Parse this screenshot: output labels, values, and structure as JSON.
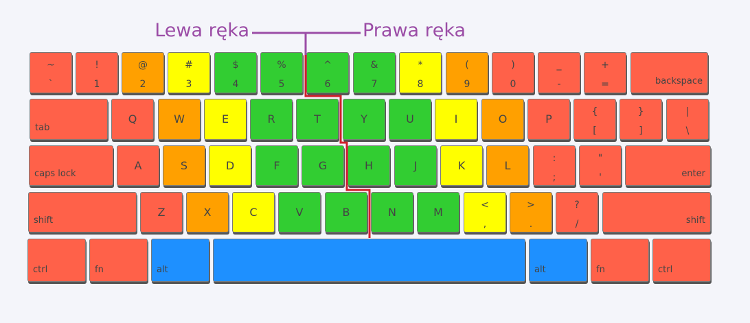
{
  "labels": {
    "left_hand": "Lewa ręka",
    "right_hand": "Prawa ręka"
  },
  "colors": {
    "red": "#ff6149",
    "orange": "#ffa000",
    "yellow": "#ffff00",
    "green": "#32cd32",
    "blue": "#1e90ff",
    "label_purple": "#9b4da6",
    "divider_red": "#d01f2b"
  },
  "rows": [
    [
      {
        "id": "tilde",
        "top": "~",
        "bottom": "`",
        "color": "red"
      },
      {
        "id": "1",
        "top": "!",
        "bottom": "1",
        "color": "red"
      },
      {
        "id": "2",
        "top": "@",
        "bottom": "2",
        "color": "orange"
      },
      {
        "id": "3",
        "top": "#",
        "bottom": "3",
        "color": "yellow"
      },
      {
        "id": "4",
        "top": "$",
        "bottom": "4",
        "color": "green"
      },
      {
        "id": "5",
        "top": "%",
        "bottom": "5",
        "color": "green"
      },
      {
        "id": "6",
        "top": "^",
        "bottom": "6",
        "color": "green"
      },
      {
        "id": "7",
        "top": "&",
        "bottom": "7",
        "color": "green"
      },
      {
        "id": "8",
        "top": "*",
        "bottom": "8",
        "color": "yellow"
      },
      {
        "id": "9",
        "top": "(",
        "bottom": "9",
        "color": "orange"
      },
      {
        "id": "0",
        "top": ")",
        "bottom": "0",
        "color": "red"
      },
      {
        "id": "minus",
        "top": "_",
        "bottom": "-",
        "color": "red"
      },
      {
        "id": "equals",
        "top": "+",
        "bottom": "=",
        "color": "red"
      },
      {
        "id": "backspace",
        "label": "backspace",
        "align": "right",
        "color": "red"
      }
    ],
    [
      {
        "id": "tab",
        "label": "tab",
        "align": "left",
        "color": "red"
      },
      {
        "id": "q",
        "main": "Q",
        "color": "red"
      },
      {
        "id": "w",
        "main": "W",
        "color": "orange"
      },
      {
        "id": "e",
        "main": "E",
        "color": "yellow"
      },
      {
        "id": "r",
        "main": "R",
        "color": "green"
      },
      {
        "id": "t",
        "main": "T",
        "color": "green"
      },
      {
        "id": "y",
        "main": "Y",
        "color": "green"
      },
      {
        "id": "u",
        "main": "U",
        "color": "green"
      },
      {
        "id": "i",
        "main": "I",
        "color": "yellow"
      },
      {
        "id": "o",
        "main": "O",
        "color": "orange"
      },
      {
        "id": "p",
        "main": "P",
        "color": "red"
      },
      {
        "id": "lbracket",
        "top": "{",
        "bottom": "[",
        "color": "red"
      },
      {
        "id": "rbracket",
        "top": "}",
        "bottom": "]",
        "color": "red"
      },
      {
        "id": "backslash",
        "top": "|",
        "bottom": "\\",
        "color": "red"
      }
    ],
    [
      {
        "id": "capslock",
        "label": "caps lock",
        "align": "left",
        "color": "red"
      },
      {
        "id": "a",
        "main": "A",
        "color": "red"
      },
      {
        "id": "s",
        "main": "S",
        "color": "orange"
      },
      {
        "id": "d",
        "main": "D",
        "color": "yellow"
      },
      {
        "id": "f",
        "main": "F",
        "color": "green"
      },
      {
        "id": "g",
        "main": "G",
        "color": "green"
      },
      {
        "id": "h",
        "main": "H",
        "color": "green"
      },
      {
        "id": "j",
        "main": "J",
        "color": "green"
      },
      {
        "id": "k",
        "main": "K",
        "color": "yellow"
      },
      {
        "id": "l",
        "main": "L",
        "color": "orange"
      },
      {
        "id": "semicolon",
        "top": ":",
        "bottom": ";",
        "color": "red"
      },
      {
        "id": "quote",
        "top": "\"",
        "bottom": "'",
        "color": "red"
      },
      {
        "id": "enter",
        "label": "enter",
        "align": "right",
        "color": "red"
      }
    ],
    [
      {
        "id": "lshift",
        "label": "shift",
        "align": "left",
        "color": "red"
      },
      {
        "id": "z",
        "main": "Z",
        "color": "red"
      },
      {
        "id": "x",
        "main": "X",
        "color": "orange"
      },
      {
        "id": "c",
        "main": "C",
        "color": "yellow"
      },
      {
        "id": "v",
        "main": "V",
        "color": "green"
      },
      {
        "id": "b",
        "main": "B",
        "color": "green"
      },
      {
        "id": "n",
        "main": "N",
        "color": "green"
      },
      {
        "id": "m",
        "main": "M",
        "color": "green"
      },
      {
        "id": "comma",
        "top": "<",
        "bottom": ",",
        "color": "yellow"
      },
      {
        "id": "period",
        "top": ">",
        "bottom": ".",
        "color": "orange"
      },
      {
        "id": "slash",
        "top": "?",
        "bottom": "/",
        "color": "red"
      },
      {
        "id": "rshift",
        "label": "shift",
        "align": "right",
        "color": "red"
      }
    ],
    [
      {
        "id": "lctrl",
        "label": "ctrl",
        "align": "left",
        "color": "red"
      },
      {
        "id": "lfn",
        "label": "fn",
        "align": "left",
        "color": "red"
      },
      {
        "id": "lalt",
        "label": "alt",
        "align": "left",
        "color": "blue"
      },
      {
        "id": "space",
        "label": "",
        "align": "left",
        "color": "blue"
      },
      {
        "id": "ralt",
        "label": "alt",
        "align": "left",
        "color": "blue"
      },
      {
        "id": "rfn",
        "label": "fn",
        "align": "left",
        "color": "red"
      },
      {
        "id": "rctrl",
        "label": "ctrl",
        "align": "left",
        "color": "red"
      }
    ]
  ]
}
